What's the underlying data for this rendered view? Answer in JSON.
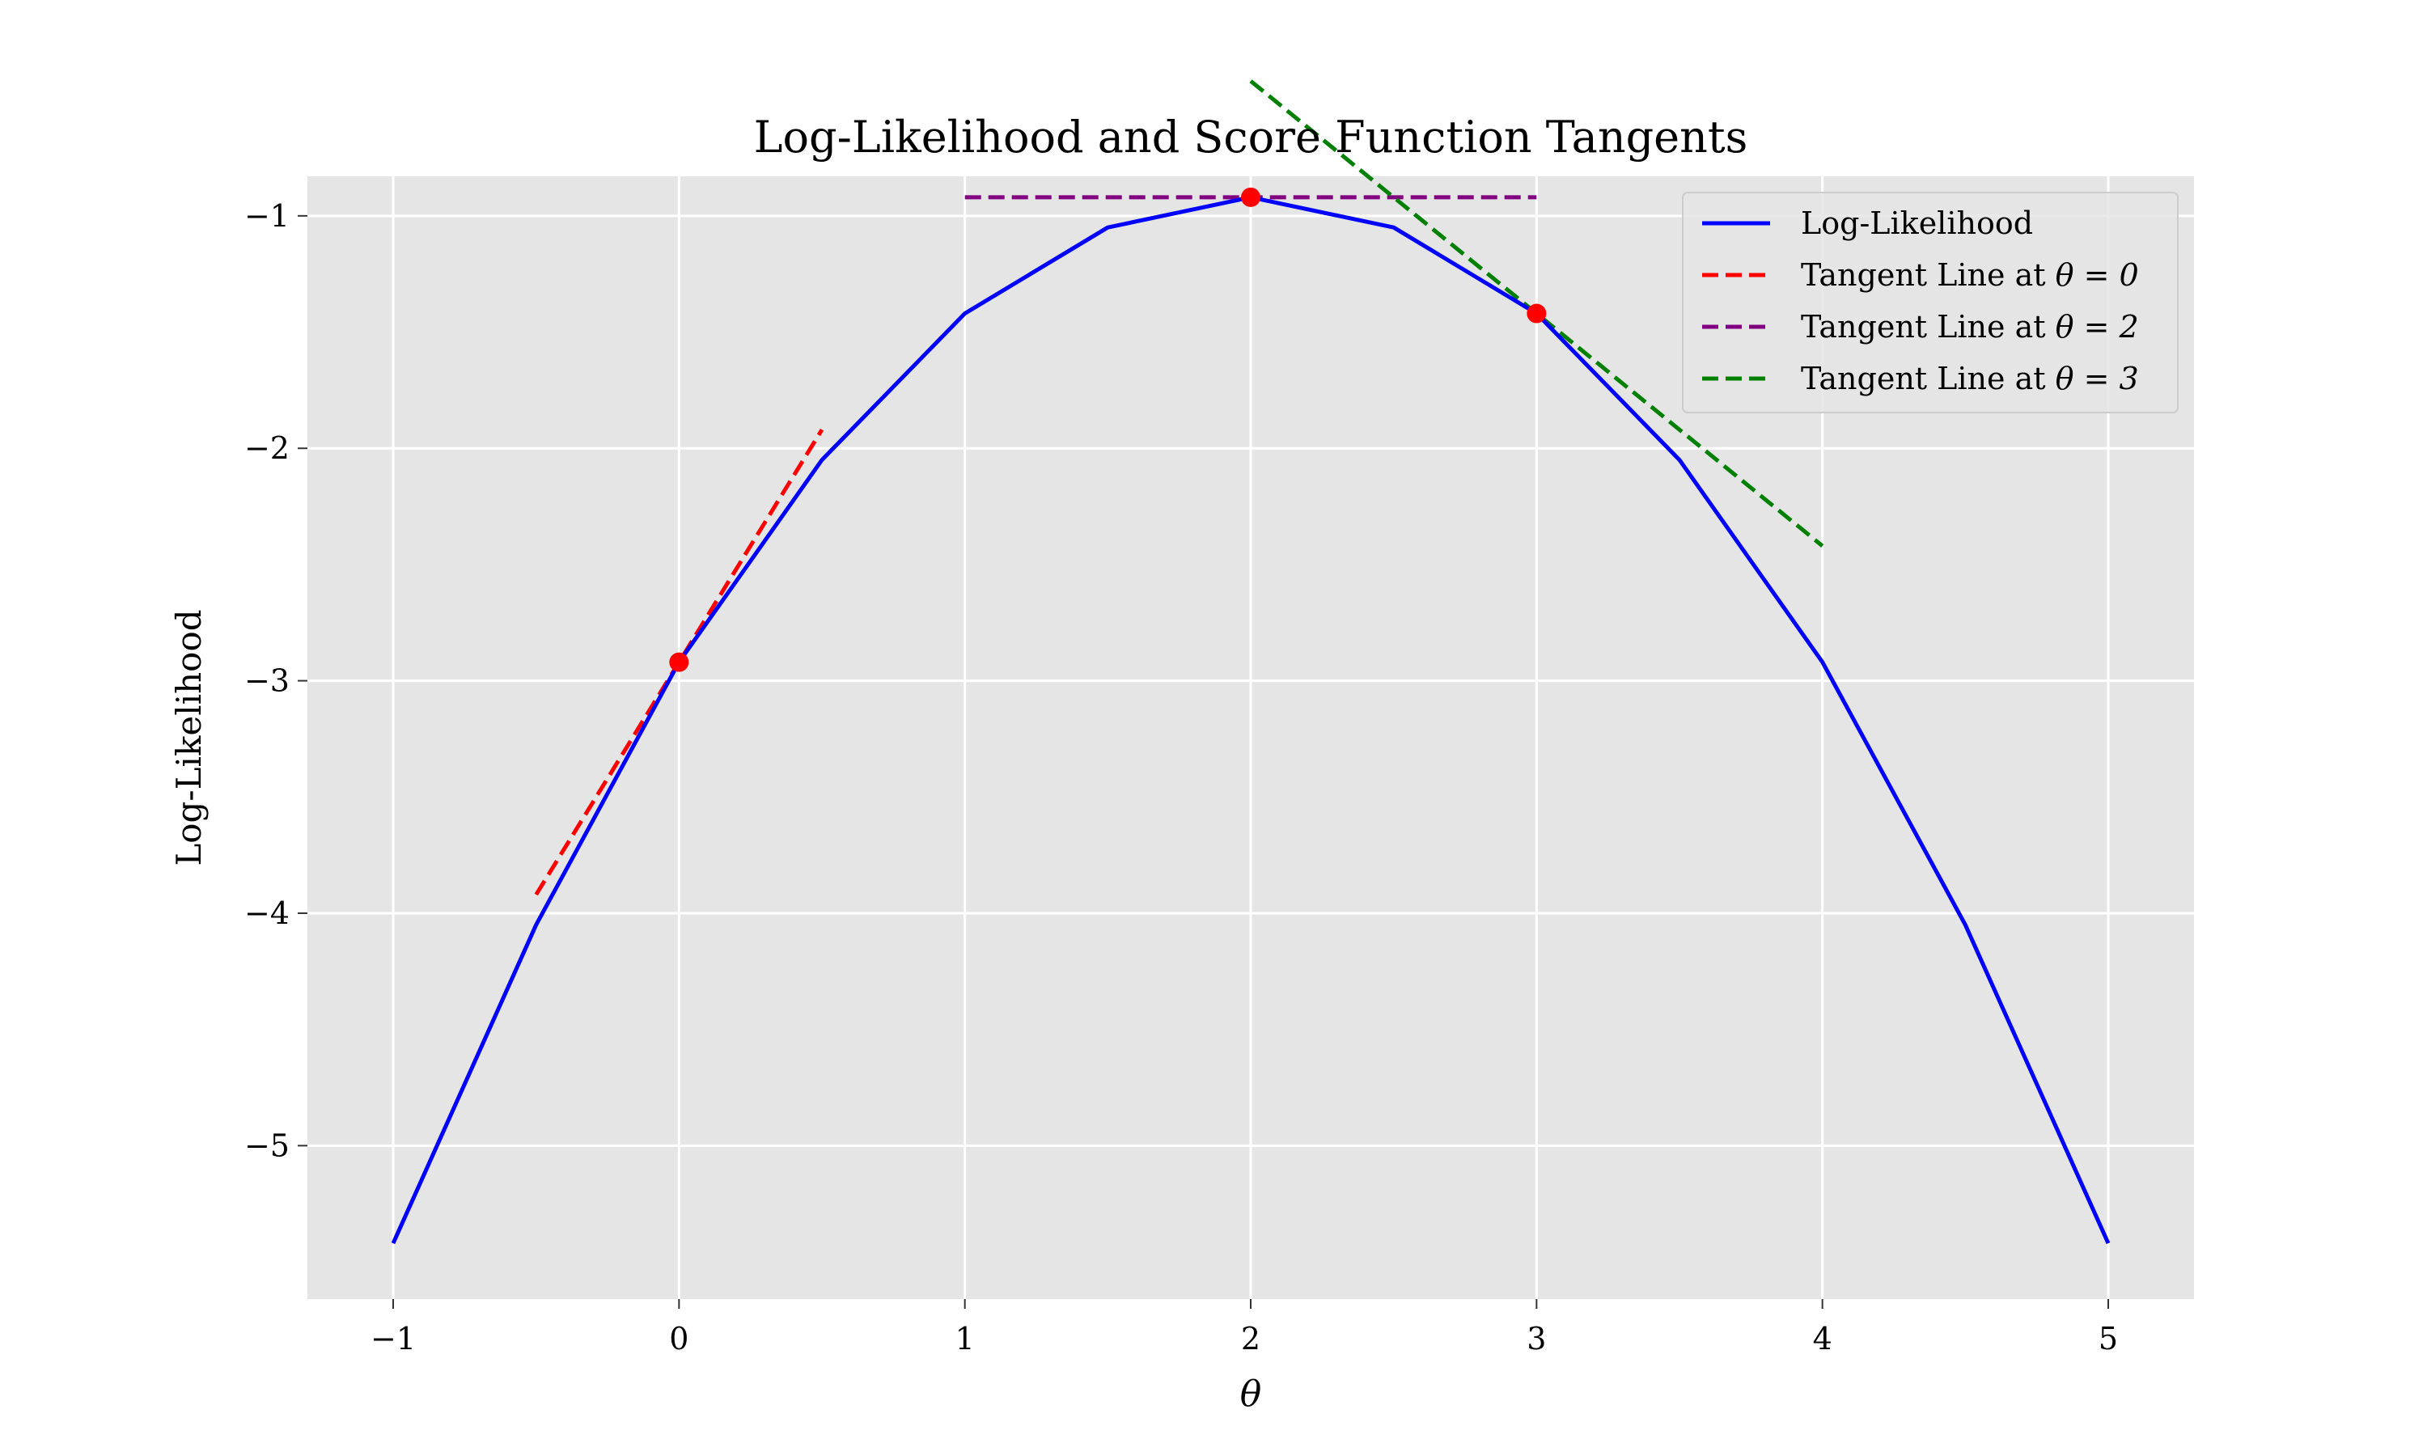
{
  "chart_data": {
    "type": "line",
    "title": "Log-Likelihood and Score Function Tangents",
    "xlabel": "θ",
    "ylabel": "Log-Likelihood",
    "xlim": [
      -1.3,
      5.3
    ],
    "ylim": [
      -5.66,
      -0.83
    ],
    "xticks": [
      -1,
      0,
      1,
      2,
      3,
      4,
      5
    ],
    "xtick_labels": [
      "−1",
      "0",
      "1",
      "2",
      "3",
      "4",
      "5"
    ],
    "yticks": [
      -1,
      -2,
      -3,
      -4,
      -5
    ],
    "ytick_labels": [
      "−1",
      "−2",
      "−3",
      "−4",
      "−5"
    ],
    "grid": true,
    "legend_position": "top-right",
    "background_color": "#e5e5e5",
    "series": [
      {
        "name": "Log-Likelihood",
        "color": "#0000ff",
        "style": "solid",
        "x": [
          -1.0,
          -0.5,
          0.0,
          0.5,
          1.0,
          1.5,
          2.0,
          2.5,
          3.0,
          3.5,
          4.0,
          4.5,
          5.0
        ],
        "y": [
          -5.42,
          -4.05,
          -2.92,
          -2.05,
          -1.42,
          -1.05,
          -0.92,
          -1.05,
          -1.42,
          -2.05,
          -2.92,
          -4.05,
          -5.42
        ]
      },
      {
        "name": "Tangent Line at θ = 0",
        "legend_prefix": "Tangent Line at ",
        "legend_math": "θ = 0",
        "color": "#ff0000",
        "style": "dashed",
        "x": [
          -0.5,
          0.5
        ],
        "y": [
          -3.92,
          -1.92
        ]
      },
      {
        "name": "Tangent Line at θ = 2",
        "legend_prefix": "Tangent Line at ",
        "legend_math": "θ = 2",
        "color": "#800080",
        "style": "dashed",
        "x": [
          1.0,
          3.0
        ],
        "y": [
          -0.92,
          -0.92
        ]
      },
      {
        "name": "Tangent Line at θ = 3",
        "legend_prefix": "Tangent Line at ",
        "legend_math": "θ = 3",
        "color": "#008000",
        "style": "dashed",
        "x": [
          2.0,
          4.0
        ],
        "y": [
          -0.42,
          -2.42
        ]
      }
    ],
    "points": {
      "color": "#ff0000",
      "x": [
        0,
        2,
        3
      ],
      "y": [
        -2.92,
        -0.92,
        -1.42
      ]
    }
  }
}
